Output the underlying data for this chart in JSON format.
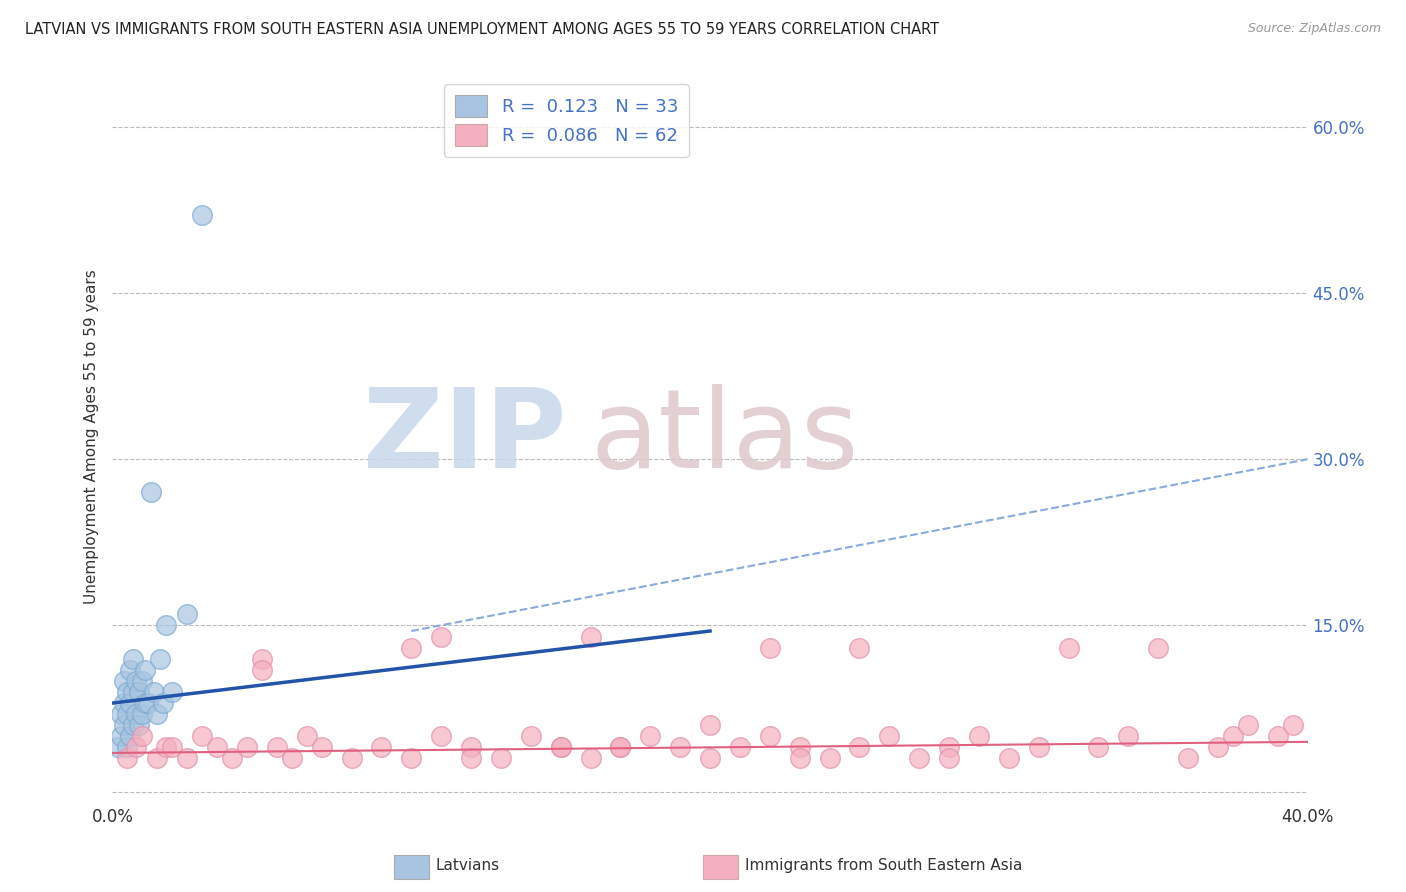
{
  "title": "LATVIAN VS IMMIGRANTS FROM SOUTH EASTERN ASIA UNEMPLOYMENT AMONG AGES 55 TO 59 YEARS CORRELATION CHART",
  "source": "Source: ZipAtlas.com",
  "ylabel": "Unemployment Among Ages 55 to 59 years",
  "xlim": [
    0.0,
    0.4
  ],
  "ylim": [
    -0.01,
    0.65
  ],
  "yticks": [
    0.0,
    0.15,
    0.3,
    0.45,
    0.6
  ],
  "ytick_labels": [
    "",
    "15.0%",
    "30.0%",
    "45.0%",
    "60.0%"
  ],
  "xticks": [
    0.0,
    0.1,
    0.2,
    0.3,
    0.4
  ],
  "xtick_labels": [
    "0.0%",
    "",
    "",
    "",
    "40.0%"
  ],
  "latvian_R": 0.123,
  "latvian_N": 33,
  "immigrant_R": 0.086,
  "immigrant_N": 62,
  "latvian_color": "#a8c4e0",
  "latvian_line_color": "#2255aa",
  "immigrant_color": "#f4b0c0",
  "immigrant_line_color": "#e06080",
  "legend_latvian": "Latvians",
  "legend_immigrant": "Immigrants from South Eastern Asia",
  "background_color": "#ffffff",
  "grid_color": "#bbbbbb",
  "latvian_x": [
    0.002,
    0.003,
    0.003,
    0.004,
    0.004,
    0.004,
    0.005,
    0.005,
    0.005,
    0.006,
    0.006,
    0.006,
    0.007,
    0.007,
    0.007,
    0.008,
    0.008,
    0.009,
    0.009,
    0.01,
    0.01,
    0.011,
    0.011,
    0.012,
    0.013,
    0.014,
    0.015,
    0.016,
    0.017,
    0.018,
    0.02,
    0.025,
    0.03
  ],
  "latvian_y": [
    0.04,
    0.05,
    0.07,
    0.06,
    0.08,
    0.1,
    0.04,
    0.07,
    0.09,
    0.05,
    0.08,
    0.11,
    0.06,
    0.09,
    0.12,
    0.07,
    0.1,
    0.06,
    0.09,
    0.07,
    0.1,
    0.08,
    0.11,
    0.08,
    0.27,
    0.09,
    0.07,
    0.12,
    0.08,
    0.15,
    0.09,
    0.16,
    0.52
  ],
  "latvian_line_x": [
    0.0,
    0.2
  ],
  "latvian_line_y": [
    0.08,
    0.145
  ],
  "immigrant_line_x": [
    0.1,
    0.4
  ],
  "immigrant_line_y": [
    0.145,
    0.3
  ],
  "immigrant_solid_line_x": [
    0.0,
    0.4
  ],
  "immigrant_solid_line_y": [
    0.035,
    0.045
  ],
  "immigrant_x": [
    0.005,
    0.008,
    0.01,
    0.015,
    0.018,
    0.02,
    0.025,
    0.03,
    0.035,
    0.04,
    0.045,
    0.05,
    0.055,
    0.06,
    0.065,
    0.07,
    0.08,
    0.09,
    0.1,
    0.11,
    0.12,
    0.13,
    0.14,
    0.15,
    0.16,
    0.17,
    0.18,
    0.19,
    0.2,
    0.21,
    0.22,
    0.23,
    0.24,
    0.25,
    0.26,
    0.27,
    0.28,
    0.29,
    0.3,
    0.31,
    0.32,
    0.33,
    0.34,
    0.35,
    0.36,
    0.37,
    0.375,
    0.38,
    0.39,
    0.395,
    0.05,
    0.1,
    0.15,
    0.2,
    0.25,
    0.11,
    0.16,
    0.22,
    0.28,
    0.12,
    0.17,
    0.23
  ],
  "immigrant_y": [
    0.03,
    0.04,
    0.05,
    0.03,
    0.04,
    0.04,
    0.03,
    0.05,
    0.04,
    0.03,
    0.04,
    0.12,
    0.04,
    0.03,
    0.05,
    0.04,
    0.03,
    0.04,
    0.03,
    0.05,
    0.04,
    0.03,
    0.05,
    0.04,
    0.03,
    0.04,
    0.05,
    0.04,
    0.03,
    0.04,
    0.05,
    0.04,
    0.03,
    0.04,
    0.05,
    0.03,
    0.04,
    0.05,
    0.03,
    0.04,
    0.13,
    0.04,
    0.05,
    0.13,
    0.03,
    0.04,
    0.05,
    0.06,
    0.05,
    0.06,
    0.11,
    0.13,
    0.04,
    0.06,
    0.13,
    0.14,
    0.14,
    0.13,
    0.03,
    0.03,
    0.04,
    0.03
  ]
}
